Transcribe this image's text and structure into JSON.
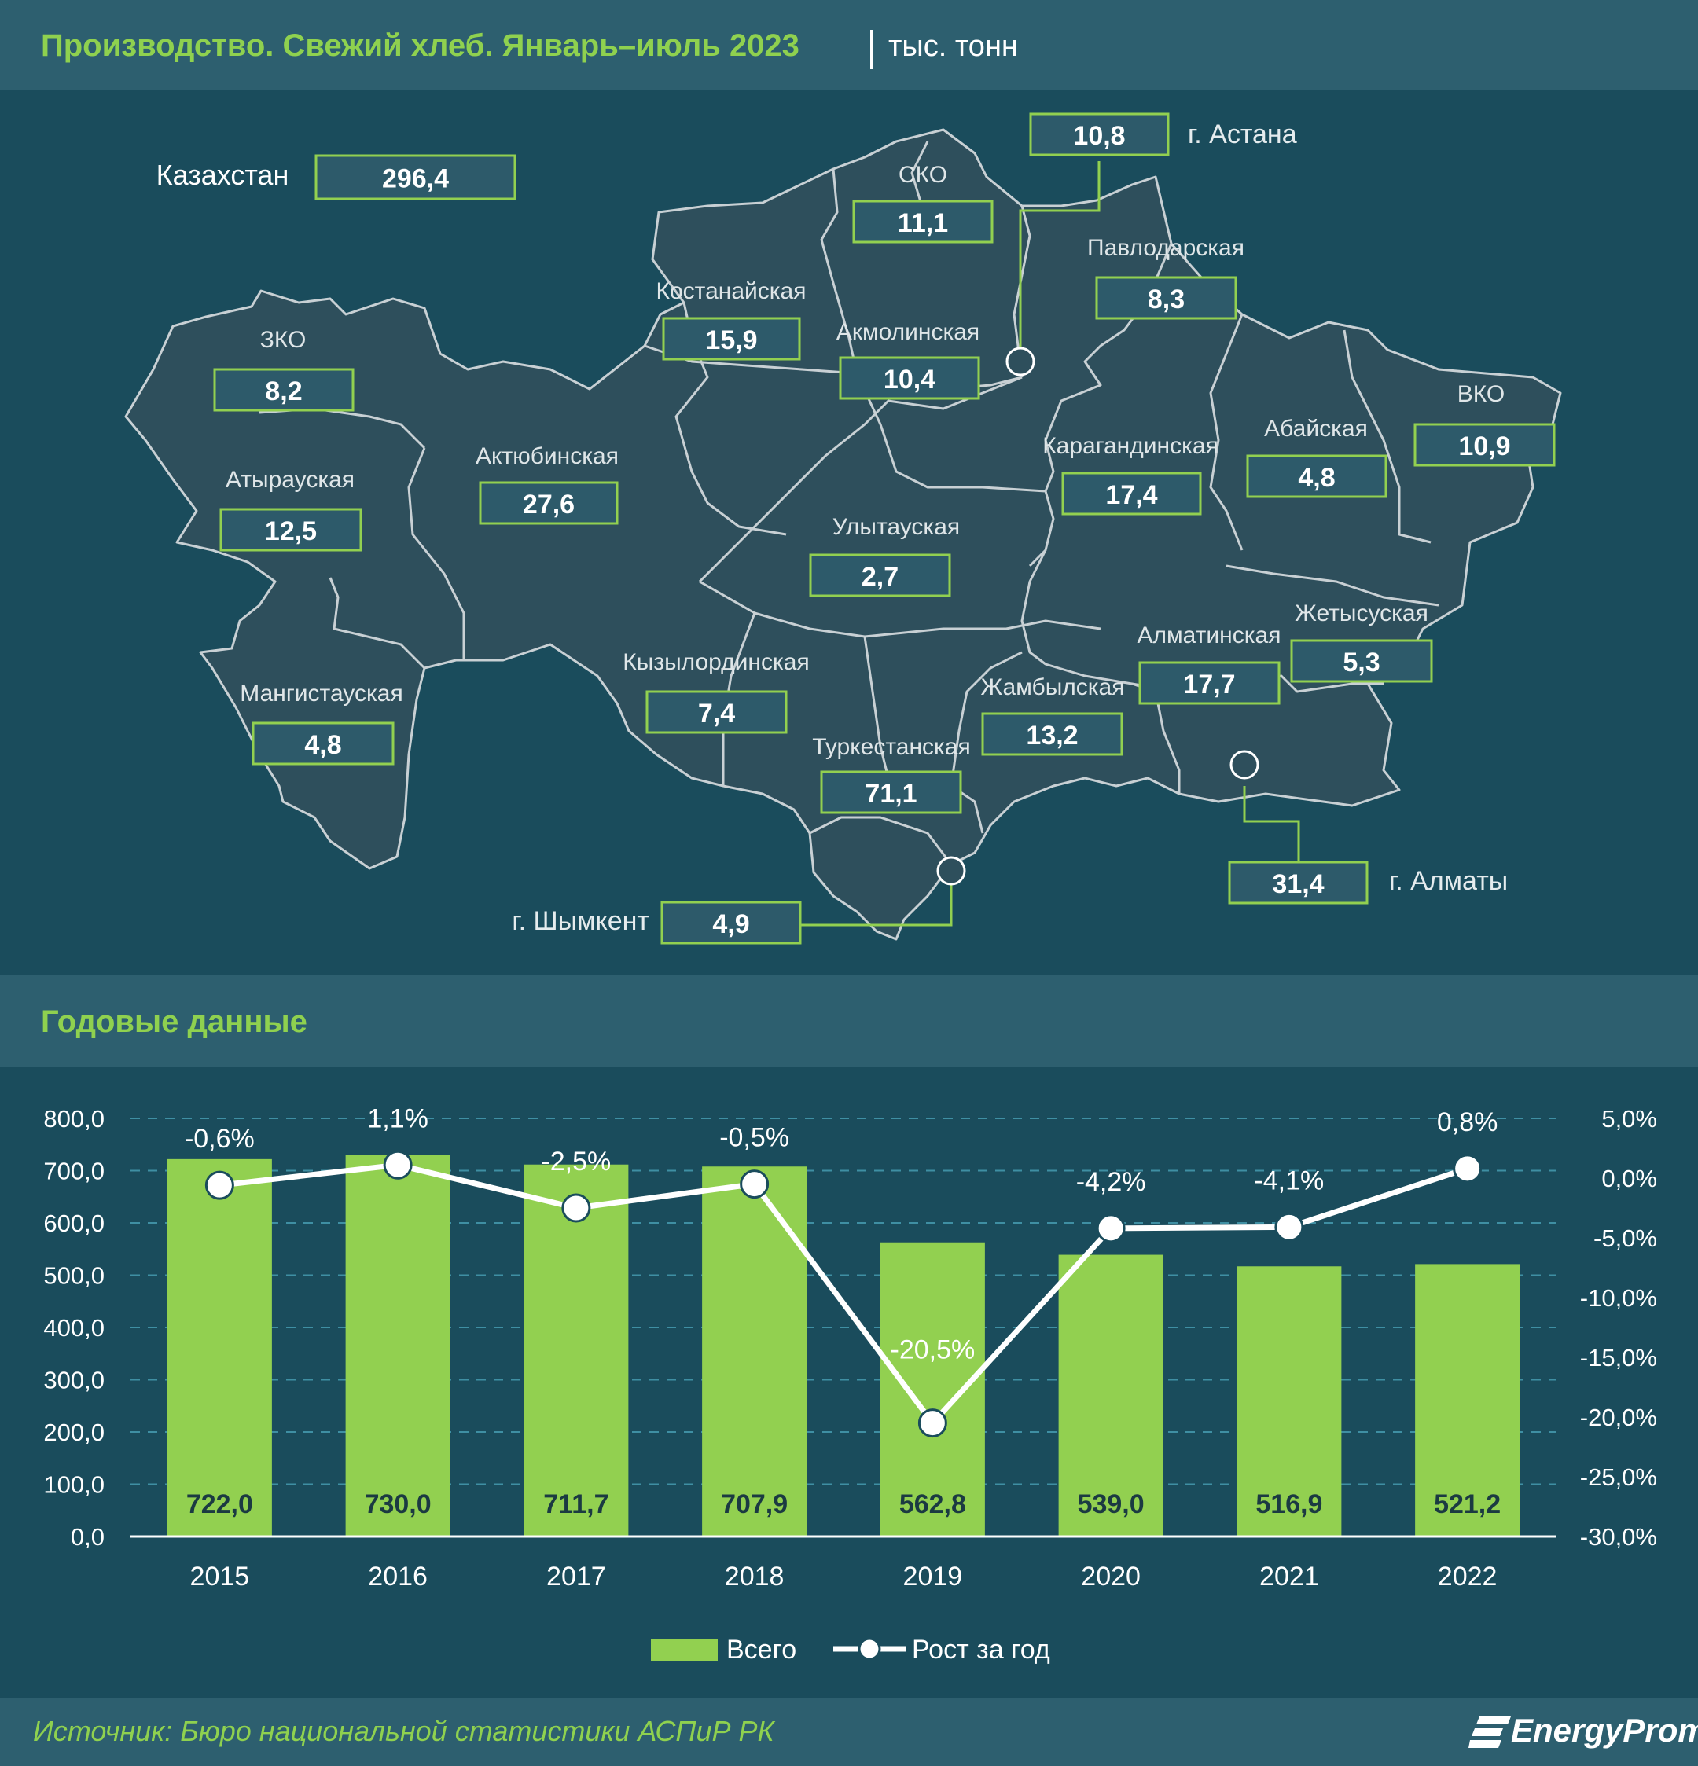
{
  "map_header": {
    "title": "Производство. Свежий хлеб. Январь–июль 2023",
    "unit": "тыс. тонн"
  },
  "country": {
    "label": "Казахстан",
    "value": "296,4"
  },
  "regions": [
    {
      "name": "ЗКО",
      "value": "8,2"
    },
    {
      "name": "Атырауская",
      "value": "12,5"
    },
    {
      "name": "Мангистауская",
      "value": "4,8"
    },
    {
      "name": "Актюбинская",
      "value": "27,6"
    },
    {
      "name": "Костанайская",
      "value": "15,9"
    },
    {
      "name": "СКО",
      "value": "11,1"
    },
    {
      "name": "Акмолинская",
      "value": "10,4"
    },
    {
      "name": "Павлодарская",
      "value": "8,3"
    },
    {
      "name": "Карагандинская",
      "value": "17,4"
    },
    {
      "name": "Абайская",
      "value": "4,8"
    },
    {
      "name": "ВКО",
      "value": "10,9"
    },
    {
      "name": "Улытауская",
      "value": "2,7"
    },
    {
      "name": "Кызылординская",
      "value": "7,4"
    },
    {
      "name": "Туркестанская",
      "value": "71,1"
    },
    {
      "name": "Жамбылская",
      "value": "13,2"
    },
    {
      "name": "Алматинская",
      "value": "17,7"
    },
    {
      "name": "Жетысуская",
      "value": "5,3"
    }
  ],
  "cities": [
    {
      "name": "г. Астана",
      "value": "10,8"
    },
    {
      "name": "г. Алматы",
      "value": "31,4"
    },
    {
      "name": "г. Шымкент",
      "value": "4,9"
    }
  ],
  "chart_header": {
    "title": "Годовые данные"
  },
  "chart_data": {
    "type": "bar",
    "categories": [
      "2015",
      "2016",
      "2017",
      "2018",
      "2019",
      "2020",
      "2021",
      "2022"
    ],
    "series": [
      {
        "name": "Всего",
        "type": "bar",
        "axis": "left",
        "values": [
          722.0,
          730.0,
          711.7,
          707.9,
          562.8,
          539.0,
          516.9,
          521.2
        ],
        "labels": [
          "722,0",
          "730,0",
          "711,7",
          "707,9",
          "562,8",
          "539,0",
          "516,9",
          "521,2"
        ]
      },
      {
        "name": "Рост за год",
        "type": "line",
        "axis": "right",
        "values": [
          -0.6,
          1.1,
          -2.5,
          -0.5,
          -20.5,
          -4.2,
          -4.1,
          0.8
        ],
        "labels": [
          "-0,6%",
          "1,1%",
          "-2,5%",
          "-0,5%",
          "-20,5%",
          "-4,2%",
          "-4,1%",
          "0,8%"
        ]
      }
    ],
    "y_left": {
      "ylim": [
        0,
        800
      ],
      "ticks": [
        "0,0",
        "100,0",
        "200,0",
        "300,0",
        "400,0",
        "500,0",
        "600,0",
        "700,0",
        "800,0"
      ]
    },
    "y_right": {
      "ylim": [
        -30,
        5
      ],
      "ticks": [
        "-30,0%",
        "-25,0%",
        "-20,0%",
        "-15,0%",
        "-10,0%",
        "-5,0%",
        "0,0%",
        "5,0%"
      ]
    },
    "grid": true,
    "legend": "bottom",
    "colors": {
      "bar": "#92d050",
      "line": "#ffffff"
    }
  },
  "footer": {
    "source": "Источник: Бюро национальной статистики АСПиР РК",
    "logo": "EnergyProm"
  }
}
